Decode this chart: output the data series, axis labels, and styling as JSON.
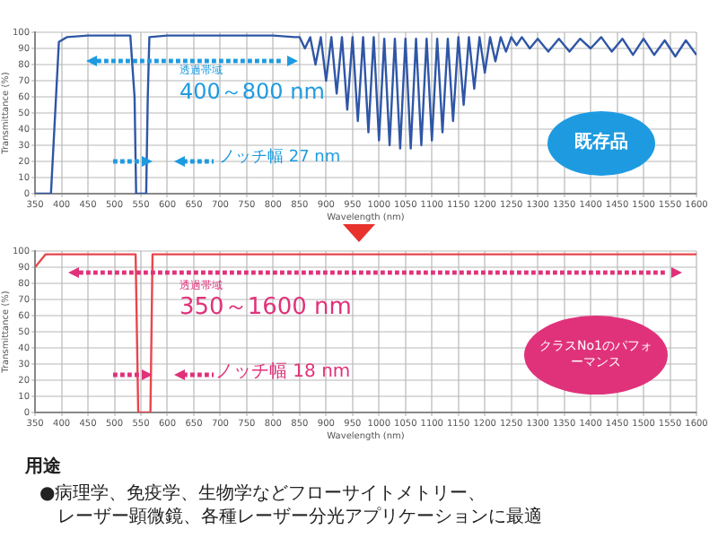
{
  "chart_data": [
    {
      "type": "line",
      "xlabel": "Wavelength (nm)",
      "ylabel": "Transmittance (%)",
      "xlim": [
        350,
        1600
      ],
      "ylim": [
        0,
        100
      ],
      "xticks": [
        350,
        400,
        450,
        500,
        550,
        600,
        650,
        700,
        750,
        800,
        850,
        900,
        950,
        1000,
        1050,
        1100,
        1150,
        1200,
        1250,
        1300,
        1350,
        1400,
        1450,
        1500,
        1550,
        1600
      ],
      "yticks": [
        0,
        10,
        20,
        30,
        40,
        50,
        60,
        70,
        80,
        90,
        100
      ],
      "grid": true,
      "annotations": [
        "透過帯域",
        "400～800 nm",
        "ノッチ幅 27 nm",
        "既存品"
      ],
      "series": [
        {
          "color": "#2f56a6",
          "x": [
            350,
            380,
            388,
            395,
            410,
            450,
            530,
            538,
            541,
            560,
            563,
            566,
            600,
            700,
            800,
            840,
            850,
            860,
            870,
            880,
            890,
            900,
            910,
            920,
            930,
            940,
            950,
            960,
            970,
            980,
            990,
            1000,
            1010,
            1020,
            1030,
            1040,
            1050,
            1060,
            1070,
            1080,
            1090,
            1100,
            1110,
            1120,
            1130,
            1140,
            1150,
            1160,
            1170,
            1180,
            1190,
            1200,
            1210,
            1220,
            1230,
            1240,
            1250,
            1260,
            1270,
            1285,
            1300,
            1320,
            1340,
            1360,
            1380,
            1400,
            1420,
            1440,
            1460,
            1480,
            1500,
            1520,
            1540,
            1560,
            1580,
            1600
          ],
          "values": [
            0,
            0,
            50,
            94,
            97,
            98,
            98,
            60,
            0,
            0,
            60,
            97,
            98,
            98,
            98,
            97,
            97,
            90,
            97,
            80,
            97,
            70,
            97,
            62,
            97,
            52,
            97,
            45,
            97,
            38,
            97,
            33,
            96,
            30,
            96,
            28,
            96,
            28,
            96,
            30,
            96,
            33,
            96,
            38,
            96,
            45,
            97,
            55,
            97,
            65,
            97,
            75,
            97,
            82,
            97,
            88,
            97,
            92,
            97,
            90,
            96,
            88,
            96,
            88,
            96,
            90,
            97,
            88,
            96,
            86,
            96,
            86,
            95,
            85,
            95,
            86
          ]
        }
      ]
    },
    {
      "type": "line",
      "xlabel": "Wavelength (nm)",
      "ylabel": "Transmittance (%)",
      "xlim": [
        350,
        1600
      ],
      "ylim": [
        0,
        100
      ],
      "xticks": [
        350,
        400,
        450,
        500,
        550,
        600,
        650,
        700,
        750,
        800,
        850,
        900,
        950,
        1000,
        1050,
        1100,
        1150,
        1200,
        1250,
        1300,
        1350,
        1400,
        1450,
        1500,
        1550,
        1600
      ],
      "yticks": [
        0,
        10,
        20,
        30,
        40,
        50,
        60,
        70,
        80,
        90,
        100
      ],
      "grid": true,
      "annotations": [
        "透過帯域",
        "350～1600 nm",
        "ノッチ幅 18 nm",
        "クラスNo1のパフォーマンス",
        "用途",
        "●病理学、免疫学、生物学などフローサイトメトリー、",
        "レーザー顕微鏡、各種レーザー分光アプリケーションに最適"
      ],
      "series": [
        {
          "color": "#e8474f",
          "x": [
            350,
            370,
            540,
            545,
            568,
            572,
            1600
          ],
          "values": [
            90,
            98,
            98,
            0,
            0,
            98,
            98
          ]
        }
      ]
    }
  ]
}
